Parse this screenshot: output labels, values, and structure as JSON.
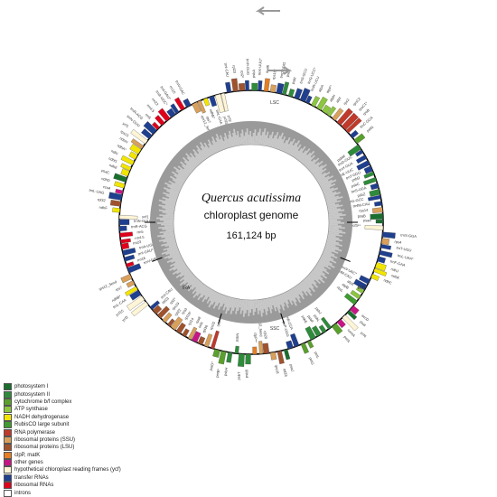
{
  "title": {
    "species": "Quercus acutissima",
    "subtitle": "chloroplast genome",
    "size": "161,124 bp"
  },
  "regions": {
    "lsc": "LSC",
    "ssc": "SSC",
    "ira": "IRA",
    "irb": "IRB"
  },
  "legend": [
    {
      "label": "photosystem I",
      "color": "#1a6e2e"
    },
    {
      "label": "photosystem II",
      "color": "#2e8b3a"
    },
    {
      "label": "cytochrome b/f complex",
      "color": "#5aa02c"
    },
    {
      "label": "ATP synthase",
      "color": "#8cc63f"
    },
    {
      "label": "NADH dehydrogenase",
      "color": "#f2e600"
    },
    {
      "label": "RubisCO large subunit",
      "color": "#3f9b2f"
    },
    {
      "label": "RNA polymerase",
      "color": "#c0392b"
    },
    {
      "label": "ribosomal proteins (SSU)",
      "color": "#d9a05b"
    },
    {
      "label": "ribosomal proteins (LSU)",
      "color": "#a0522d"
    },
    {
      "label": "clpP, matK",
      "color": "#e67e22"
    },
    {
      "label": "other genes",
      "color": "#c71585"
    },
    {
      "label": "hypothetical chloroplast reading frames (ycf)",
      "color": "#fff5d6"
    },
    {
      "label": "transfer RNAs",
      "color": "#1f3f8f"
    },
    {
      "label": "ribosomal RNAs",
      "color": "#e0001b"
    },
    {
      "label": "introns",
      "color": "#ffffff"
    }
  ],
  "genes": [
    {
      "name": "psbA",
      "cat": 1,
      "out": true
    },
    {
      "name": "trnK-UUU*",
      "cat": 12,
      "out": true
    },
    {
      "name": "matK",
      "cat": 9,
      "out": true
    },
    {
      "name": "rps16*",
      "cat": 7,
      "out": true
    },
    {
      "name": "trnQ-UUG",
      "cat": 12,
      "out": true
    },
    {
      "name": "psbK",
      "cat": 1,
      "out": true
    },
    {
      "name": "psbI",
      "cat": 1,
      "out": true
    },
    {
      "name": "trnS-GCU",
      "cat": 12,
      "out": true
    },
    {
      "name": "trnG-UCC*",
      "cat": 12,
      "out": true
    },
    {
      "name": "trnR-UCU",
      "cat": 12,
      "out": true
    },
    {
      "name": "atpA",
      "cat": 3,
      "out": true
    },
    {
      "name": "atpF*",
      "cat": 3,
      "out": true
    },
    {
      "name": "atpH",
      "cat": 3,
      "out": true
    },
    {
      "name": "atpI",
      "cat": 3,
      "out": true
    },
    {
      "name": "rps2",
      "cat": 7,
      "out": true
    },
    {
      "name": "rpoC2",
      "cat": 6,
      "out": true
    },
    {
      "name": "rpoC1*",
      "cat": 6,
      "out": true
    },
    {
      "name": "rpoB",
      "cat": 6,
      "out": true
    },
    {
      "name": "trnC-GCA",
      "cat": 12,
      "out": true
    },
    {
      "name": "petN",
      "cat": 2,
      "out": true
    },
    {
      "name": "psbM",
      "cat": 1,
      "out": false
    },
    {
      "name": "trnD-GUC",
      "cat": 12,
      "out": false
    },
    {
      "name": "trnY-GUA",
      "cat": 12,
      "out": false
    },
    {
      "name": "trnE-UUC",
      "cat": 12,
      "out": false
    },
    {
      "name": "trnT-GGU",
      "cat": 12,
      "out": false
    },
    {
      "name": "psbD",
      "cat": 1,
      "out": false
    },
    {
      "name": "psbC",
      "cat": 1,
      "out": false
    },
    {
      "name": "trnS-UGA",
      "cat": 12,
      "out": false
    },
    {
      "name": "psbZ",
      "cat": 1,
      "out": false
    },
    {
      "name": "trnG-GCC",
      "cat": 12,
      "out": false
    },
    {
      "name": "trnfM-CAU",
      "cat": 12,
      "out": false
    },
    {
      "name": "rps14",
      "cat": 7,
      "out": false
    },
    {
      "name": "psaB",
      "cat": 0,
      "out": false
    },
    {
      "name": "psaA",
      "cat": 0,
      "out": false
    },
    {
      "name": "ycf3**",
      "cat": 11,
      "out": false
    },
    {
      "name": "trnS-GGA",
      "cat": 12,
      "out": true
    },
    {
      "name": "rps4",
      "cat": 7,
      "out": true
    },
    {
      "name": "trnT-UGU",
      "cat": 12,
      "out": true
    },
    {
      "name": "trnL-UAA*",
      "cat": 12,
      "out": true
    },
    {
      "name": "trnF-GAA",
      "cat": 12,
      "out": true
    },
    {
      "name": "ndhJ",
      "cat": 4,
      "out": true
    },
    {
      "name": "ndhK",
      "cat": 4,
      "out": true
    },
    {
      "name": "ndhC",
      "cat": 4,
      "out": true
    },
    {
      "name": "trnV-UAC*",
      "cat": 12,
      "out": false
    },
    {
      "name": "trnM-CAU",
      "cat": 12,
      "out": false
    },
    {
      "name": "atpE",
      "cat": 3,
      "out": false
    },
    {
      "name": "atpB",
      "cat": 3,
      "out": false
    },
    {
      "name": "rbcL",
      "cat": 5,
      "out": false
    },
    {
      "name": "accD",
      "cat": 10,
      "out": true
    },
    {
      "name": "psaI",
      "cat": 0,
      "out": true
    },
    {
      "name": "ycf4",
      "cat": 11,
      "out": true
    },
    {
      "name": "cemA",
      "cat": 10,
      "out": true
    },
    {
      "name": "petA",
      "cat": 2,
      "out": true
    },
    {
      "name": "psbJ",
      "cat": 1,
      "out": false
    },
    {
      "name": "psbL",
      "cat": 1,
      "out": false
    },
    {
      "name": "psbF",
      "cat": 1,
      "out": false
    },
    {
      "name": "psbE",
      "cat": 1,
      "out": false
    },
    {
      "name": "petL",
      "cat": 2,
      "out": true
    },
    {
      "name": "petG",
      "cat": 2,
      "out": true
    },
    {
      "name": "trnW-CCA",
      "cat": 12,
      "out": false
    },
    {
      "name": "trnP-UGG",
      "cat": 12,
      "out": false
    },
    {
      "name": "psaJ",
      "cat": 0,
      "out": true
    },
    {
      "name": "rpl33",
      "cat": 8,
      "out": true
    },
    {
      "name": "rps18",
      "cat": 7,
      "out": true
    },
    {
      "name": "rpl20",
      "cat": 8,
      "out": false
    },
    {
      "name": "rps12_5end",
      "cat": 7,
      "out": false
    },
    {
      "name": "clpP**",
      "cat": 9,
      "out": false
    },
    {
      "name": "psbB",
      "cat": 1,
      "out": true
    },
    {
      "name": "psbT",
      "cat": 1,
      "out": true
    },
    {
      "name": "psbN",
      "cat": 1,
      "out": false
    },
    {
      "name": "psbH",
      "cat": 1,
      "out": true
    },
    {
      "name": "petB*",
      "cat": 2,
      "out": true
    },
    {
      "name": "petD*",
      "cat": 2,
      "out": true
    },
    {
      "name": "rpoA",
      "cat": 6,
      "out": false
    },
    {
      "name": "rps11",
      "cat": 7,
      "out": false
    },
    {
      "name": "rpl36",
      "cat": 8,
      "out": false
    },
    {
      "name": "infA",
      "cat": 10,
      "out": false
    },
    {
      "name": "rps8",
      "cat": 7,
      "out": false
    },
    {
      "name": "rpl14",
      "cat": 8,
      "out": false
    },
    {
      "name": "rpl16*",
      "cat": 8,
      "out": false
    },
    {
      "name": "rps3",
      "cat": 7,
      "out": false
    },
    {
      "name": "rpl22",
      "cat": 8,
      "out": false
    },
    {
      "name": "rps19",
      "cat": 7,
      "out": false
    },
    {
      "name": "rpl2*",
      "cat": 8,
      "out": false
    },
    {
      "name": "rpl23",
      "cat": 8,
      "out": false
    },
    {
      "name": "trnI-CAU",
      "cat": 12,
      "out": false
    },
    {
      "name": "ycf2",
      "cat": 11,
      "out": true
    },
    {
      "name": "ycf15",
      "cat": 11,
      "out": true
    },
    {
      "name": "trnL-CAA",
      "cat": 12,
      "out": true
    },
    {
      "name": "ndhB*",
      "cat": 4,
      "out": true
    },
    {
      "name": "rps7",
      "cat": 7,
      "out": true
    },
    {
      "name": "rps12_3end",
      "cat": 7,
      "out": true
    },
    {
      "name": "trnV-GAC",
      "cat": 12,
      "out": false
    },
    {
      "name": "rrn16",
      "cat": 13,
      "out": false
    },
    {
      "name": "trnI-GAU*",
      "cat": 12,
      "out": false
    },
    {
      "name": "trnA-UGC*",
      "cat": 12,
      "out": false
    },
    {
      "name": "rrn23",
      "cat": 13,
      "out": false
    },
    {
      "name": "rrn4.5",
      "cat": 13,
      "out": false
    },
    {
      "name": "rrn5",
      "cat": 13,
      "out": false
    },
    {
      "name": "trnR-ACG",
      "cat": 12,
      "out": false
    },
    {
      "name": "trnN-GUU",
      "cat": 12,
      "out": false
    },
    {
      "name": "ycf1",
      "cat": 11,
      "out": false
    },
    {
      "name": "ndhF",
      "cat": 4,
      "out": true
    },
    {
      "name": "rpl32",
      "cat": 8,
      "out": true
    },
    {
      "name": "trnL-UAG",
      "cat": 12,
      "out": true
    },
    {
      "name": "ccsA",
      "cat": 10,
      "out": true
    },
    {
      "name": "ndhD",
      "cat": 4,
      "out": true
    },
    {
      "name": "psaC",
      "cat": 0,
      "out": true
    },
    {
      "name": "ndhE",
      "cat": 4,
      "out": true
    },
    {
      "name": "ndhG",
      "cat": 4,
      "out": true
    },
    {
      "name": "ndhI",
      "cat": 4,
      "out": true
    },
    {
      "name": "ndhA*",
      "cat": 4,
      "out": true
    },
    {
      "name": "ndhH",
      "cat": 4,
      "out": true
    },
    {
      "name": "rps15",
      "cat": 7,
      "out": true
    },
    {
      "name": "ycf1",
      "cat": 11,
      "out": true
    },
    {
      "name": "trnN-GUU",
      "cat": 12,
      "out": true
    },
    {
      "name": "trnR-ACG",
      "cat": 12,
      "out": true
    },
    {
      "name": "rrn5",
      "cat": 13,
      "out": true
    },
    {
      "name": "rrn4.5",
      "cat": 13,
      "out": true
    },
    {
      "name": "rrn23",
      "cat": 13,
      "out": true
    },
    {
      "name": "trnA-UGC*",
      "cat": 12,
      "out": true
    },
    {
      "name": "trnI-GAU*",
      "cat": 12,
      "out": true
    },
    {
      "name": "rrn16",
      "cat": 13,
      "out": true
    },
    {
      "name": "trnV-GAC",
      "cat": 12,
      "out": true
    },
    {
      "name": "rps12_3end",
      "cat": 7,
      "out": false
    },
    {
      "name": "rps7",
      "cat": 7,
      "out": false
    },
    {
      "name": "ndhB*",
      "cat": 4,
      "out": false
    },
    {
      "name": "trnL-CAA",
      "cat": 12,
      "out": false
    },
    {
      "name": "ycf15",
      "cat": 11,
      "out": false
    },
    {
      "name": "ycf2",
      "cat": 11,
      "out": false
    },
    {
      "name": "trnI-CAU",
      "cat": 12,
      "out": true
    },
    {
      "name": "rpl23",
      "cat": 8,
      "out": true
    },
    {
      "name": "rpl2*",
      "cat": 8,
      "out": true
    },
    {
      "name": "trnH-GUG",
      "cat": 12,
      "out": true
    }
  ]
}
